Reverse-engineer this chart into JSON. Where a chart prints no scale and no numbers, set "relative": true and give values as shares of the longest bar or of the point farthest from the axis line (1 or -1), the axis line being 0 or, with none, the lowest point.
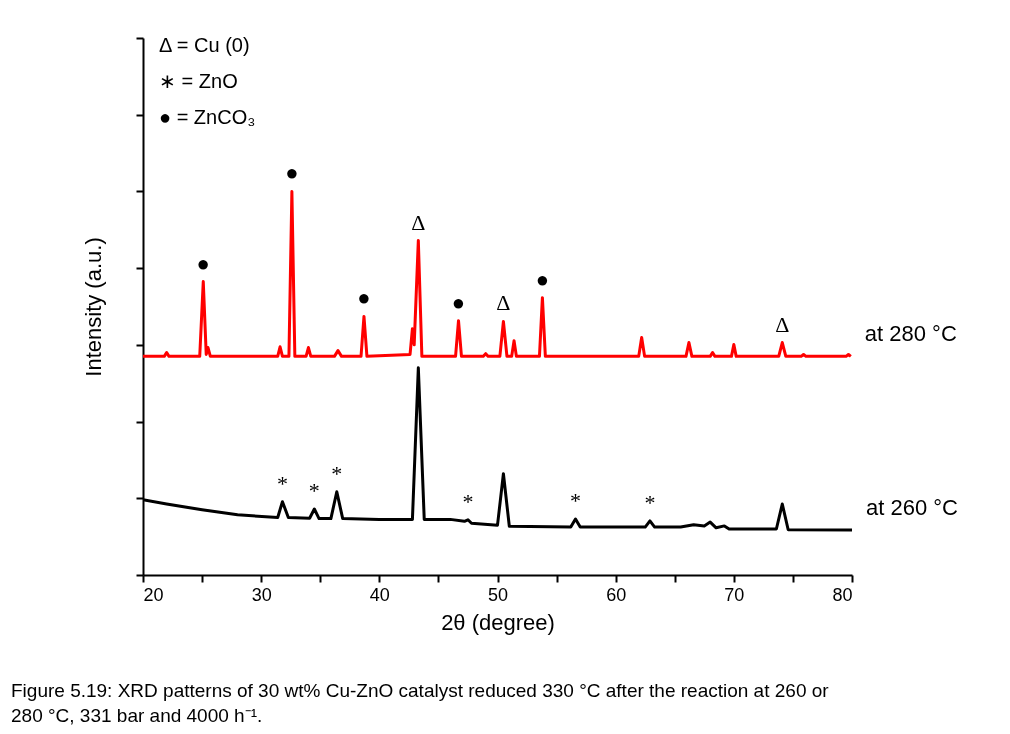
{
  "chart_data": {
    "type": "line",
    "relative": true,
    "xlabel": "2θ (degree)",
    "ylabel": "Intensity (a.u.)",
    "xlim": [
      20,
      80
    ],
    "xticks": [
      20,
      {
        "value": 25,
        "label": null
      },
      30,
      {
        "value": 35,
        "label": null
      },
      40,
      {
        "value": 45,
        "label": null
      },
      50,
      {
        "value": 55,
        "label": null
      },
      60,
      {
        "value": 65,
        "label": null
      },
      70,
      {
        "value": 75,
        "label": null
      },
      80
    ],
    "legend": false,
    "grid": false,
    "line_style": "solid",
    "series": [
      {
        "name": "at 280 °C",
        "color": "#ff0000",
        "x": [
          20,
          21.8,
          22.0,
          22.2,
          24.8,
          25.1,
          25.35,
          25.5,
          25.7,
          31.4,
          31.6,
          31.8,
          32.35,
          32.6,
          32.85,
          33.8,
          34.0,
          34.2,
          36.2,
          36.5,
          36.8,
          38.45,
          38.7,
          38.95,
          42.6,
          42.8,
          42.95,
          43.3,
          43.6,
          46.45,
          46.7,
          46.95,
          48.8,
          49.0,
          49.2,
          50.2,
          50.5,
          50.8,
          51.2,
          51.4,
          51.6,
          53.55,
          53.8,
          54.05,
          61.95,
          62.2,
          62.45,
          65.95,
          66.2,
          66.45,
          68.0,
          68.2,
          68.4,
          69.8,
          70.0,
          70.2,
          73.8,
          74.1,
          74.4,
          75.7,
          75.9,
          76.1,
          79.5,
          79.7,
          79.9
        ],
        "values": [
          0.57,
          0.57,
          0.58,
          0.57,
          0.57,
          0.765,
          0.575,
          0.593,
          0.57,
          0.57,
          0.595,
          0.57,
          0.57,
          1.0,
          0.57,
          0.57,
          0.593,
          0.57,
          0.57,
          0.585,
          0.57,
          0.57,
          0.674,
          0.57,
          0.575,
          0.642,
          0.6,
          0.872,
          0.57,
          0.57,
          0.663,
          0.57,
          0.57,
          0.577,
          0.57,
          0.57,
          0.661,
          0.57,
          0.57,
          0.611,
          0.57,
          0.57,
          0.723,
          0.57,
          0.57,
          0.619,
          0.57,
          0.57,
          0.606,
          0.57,
          0.57,
          0.58,
          0.57,
          0.57,
          0.601,
          0.57,
          0.57,
          0.606,
          0.57,
          0.57,
          0.575,
          0.57,
          0.57,
          0.575,
          0.57
        ]
      },
      {
        "name": "at 260 °C",
        "color": "#000000",
        "x": [
          20,
          22,
          25,
          28,
          31.4,
          31.8,
          32.3,
          34.1,
          34.5,
          34.9,
          35.9,
          36.4,
          36.9,
          40,
          42.8,
          43.3,
          43.8,
          46,
          47.2,
          47.5,
          47.8,
          50.0,
          50.5,
          51.0,
          56.2,
          56.6,
          57.0,
          62.5,
          62.9,
          63.3,
          65.5,
          66.6,
          67.5,
          68.0,
          68.5,
          69.2,
          69.6,
          73.6,
          74.1,
          74.6,
          80
        ],
        "values": [
          0.196,
          0.185,
          0.17,
          0.157,
          0.15,
          0.191,
          0.15,
          0.148,
          0.172,
          0.147,
          0.147,
          0.217,
          0.147,
          0.145,
          0.145,
          0.54,
          0.145,
          0.145,
          0.14,
          0.144,
          0.135,
          0.13,
          0.264,
          0.127,
          0.125,
          0.146,
          0.125,
          0.125,
          0.141,
          0.125,
          0.125,
          0.131,
          0.128,
          0.138,
          0.123,
          0.128,
          0.12,
          0.12,
          0.185,
          0.118,
          0.117
        ]
      }
    ],
    "annotations": [
      "Δ = Cu (0)",
      "∗ = ZnO",
      "● = ZnCO₃",
      {
        "text": "●",
        "x": 25.1,
        "y": 0.765
      },
      {
        "text": "●",
        "x": 32.6,
        "y": 1.0
      },
      {
        "text": "●",
        "x": 38.7,
        "y": 0.674
      },
      {
        "text": "●",
        "x": 46.7,
        "y": 0.663
      },
      {
        "text": "●",
        "x": 53.8,
        "y": 0.723
      },
      {
        "text": "Δ",
        "x": 43.3,
        "y": 0.872
      },
      {
        "text": "Δ",
        "x": 50.5,
        "y": 0.661
      },
      {
        "text": "Δ",
        "x": 74.1,
        "y": 0.606
      },
      {
        "text": "*",
        "x": 31.8,
        "y": 0.191
      },
      {
        "text": "*",
        "x": 34.5,
        "y": 0.172
      },
      {
        "text": "*",
        "x": 36.4,
        "y": 0.217
      },
      {
        "text": "*",
        "x": 47.5,
        "y": 0.144
      },
      {
        "text": "*",
        "x": 56.6,
        "y": 0.146
      },
      {
        "text": "*",
        "x": 62.9,
        "y": 0.141
      },
      "Figure 5.19: XRD patterns of 30 wt% Cu-ZnO catalyst reduced 330 °C after the reaction at 260 or 280 °C, 331 bar and 4000 h⁻¹."
    ]
  }
}
